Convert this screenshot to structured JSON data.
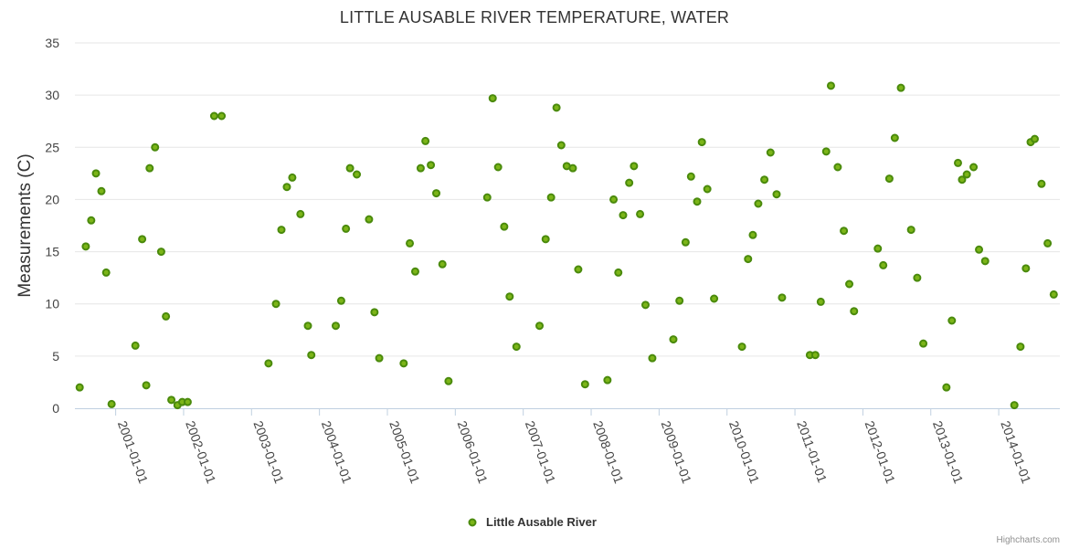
{
  "chart_data": {
    "type": "scatter",
    "title": "LITTLE AUSABLE RIVER TEMPERATURE, WATER",
    "xlabel": "",
    "ylabel": "Measurements (C)",
    "ylim": [
      0,
      35
    ],
    "yticks": [
      "0",
      "5",
      "10",
      "15",
      "20",
      "25",
      "30",
      "35"
    ],
    "xlim": [
      2000.4,
      2014.9
    ],
    "xticks": [
      {
        "label": "2001-01-01",
        "value": 2001.0
      },
      {
        "label": "2002-01-01",
        "value": 2002.0
      },
      {
        "label": "2003-01-01",
        "value": 2003.0
      },
      {
        "label": "2004-01-01",
        "value": 2004.0
      },
      {
        "label": "2005-01-01",
        "value": 2005.0
      },
      {
        "label": "2006-01-01",
        "value": 2006.0
      },
      {
        "label": "2007-01-01",
        "value": 2007.0
      },
      {
        "label": "2008-01-01",
        "value": 2008.0
      },
      {
        "label": "2009-01-01",
        "value": 2009.0
      },
      {
        "label": "2010-01-01",
        "value": 2010.0
      },
      {
        "label": "2011-01-01",
        "value": 2011.0
      },
      {
        "label": "2012-01-01",
        "value": 2012.0
      },
      {
        "label": "2013-01-01",
        "value": 2013.0
      },
      {
        "label": "2014-01-01",
        "value": 2014.0
      }
    ],
    "grid": true,
    "legend_position": "bottom-center",
    "credits": "Highcharts.com",
    "series": [
      {
        "name": "Little Ausable River",
        "color": "#6aa51e",
        "marker_fill": "#7cb518",
        "marker_stroke": "#4a8a0c",
        "points": [
          [
            2000.47,
            2.0
          ],
          [
            2000.56,
            15.5
          ],
          [
            2000.64,
            18.0
          ],
          [
            2000.71,
            22.5
          ],
          [
            2000.79,
            20.8
          ],
          [
            2000.86,
            13.0
          ],
          [
            2000.94,
            0.4
          ],
          [
            2001.29,
            6.0
          ],
          [
            2001.39,
            16.2
          ],
          [
            2001.45,
            2.2
          ],
          [
            2001.5,
            23.0
          ],
          [
            2001.58,
            25.0
          ],
          [
            2001.67,
            15.0
          ],
          [
            2001.74,
            8.8
          ],
          [
            2001.82,
            0.8
          ],
          [
            2001.91,
            0.3
          ],
          [
            2001.98,
            0.6
          ],
          [
            2002.06,
            0.6
          ],
          [
            2002.45,
            28.0
          ],
          [
            2002.56,
            28.0
          ],
          [
            2003.25,
            4.3
          ],
          [
            2003.36,
            10.0
          ],
          [
            2003.44,
            17.1
          ],
          [
            2003.52,
            21.2
          ],
          [
            2003.6,
            22.1
          ],
          [
            2003.72,
            18.6
          ],
          [
            2003.83,
            7.9
          ],
          [
            2003.88,
            5.1
          ],
          [
            2004.24,
            7.9
          ],
          [
            2004.32,
            10.3
          ],
          [
            2004.39,
            17.2
          ],
          [
            2004.45,
            23.0
          ],
          [
            2004.55,
            22.4
          ],
          [
            2004.73,
            18.1
          ],
          [
            2004.81,
            9.2
          ],
          [
            2004.88,
            4.8
          ],
          [
            2005.24,
            4.3
          ],
          [
            2005.33,
            15.8
          ],
          [
            2005.41,
            13.1
          ],
          [
            2005.49,
            23.0
          ],
          [
            2005.56,
            25.6
          ],
          [
            2005.64,
            23.3
          ],
          [
            2005.72,
            20.6
          ],
          [
            2005.81,
            13.8
          ],
          [
            2005.9,
            2.6
          ],
          [
            2006.47,
            20.2
          ],
          [
            2006.55,
            29.7
          ],
          [
            2006.63,
            23.1
          ],
          [
            2006.72,
            17.4
          ],
          [
            2006.8,
            10.7
          ],
          [
            2006.9,
            5.9
          ],
          [
            2007.24,
            7.9
          ],
          [
            2007.33,
            16.2
          ],
          [
            2007.41,
            20.2
          ],
          [
            2007.49,
            28.8
          ],
          [
            2007.56,
            25.2
          ],
          [
            2007.64,
            23.2
          ],
          [
            2007.73,
            23.0
          ],
          [
            2007.81,
            13.3
          ],
          [
            2007.91,
            2.3
          ],
          [
            2008.24,
            2.7
          ],
          [
            2008.33,
            20.0
          ],
          [
            2008.4,
            13.0
          ],
          [
            2008.47,
            18.5
          ],
          [
            2008.56,
            21.6
          ],
          [
            2008.63,
            23.2
          ],
          [
            2008.72,
            18.6
          ],
          [
            2008.8,
            9.9
          ],
          [
            2008.9,
            4.8
          ],
          [
            2009.21,
            6.6
          ],
          [
            2009.3,
            10.3
          ],
          [
            2009.39,
            15.9
          ],
          [
            2009.47,
            22.2
          ],
          [
            2009.56,
            19.8
          ],
          [
            2009.63,
            25.5
          ],
          [
            2009.71,
            21.0
          ],
          [
            2009.81,
            10.5
          ],
          [
            2010.22,
            5.9
          ],
          [
            2010.31,
            14.3
          ],
          [
            2010.38,
            16.6
          ],
          [
            2010.46,
            19.6
          ],
          [
            2010.55,
            21.9
          ],
          [
            2010.64,
            24.5
          ],
          [
            2010.73,
            20.5
          ],
          [
            2010.81,
            10.6
          ],
          [
            2011.22,
            5.1
          ],
          [
            2011.3,
            5.1
          ],
          [
            2011.38,
            10.2
          ],
          [
            2011.46,
            24.6
          ],
          [
            2011.53,
            30.9
          ],
          [
            2011.63,
            23.1
          ],
          [
            2011.72,
            17.0
          ],
          [
            2011.8,
            11.9
          ],
          [
            2011.87,
            9.3
          ],
          [
            2012.22,
            15.3
          ],
          [
            2012.3,
            13.7
          ],
          [
            2012.39,
            22.0
          ],
          [
            2012.47,
            25.9
          ],
          [
            2012.56,
            30.7
          ],
          [
            2012.71,
            17.1
          ],
          [
            2012.8,
            12.5
          ],
          [
            2012.89,
            6.2
          ],
          [
            2013.23,
            2.0
          ],
          [
            2013.31,
            8.4
          ],
          [
            2013.4,
            23.5
          ],
          [
            2013.46,
            21.9
          ],
          [
            2013.53,
            22.4
          ],
          [
            2013.63,
            23.1
          ],
          [
            2013.71,
            15.2
          ],
          [
            2013.8,
            14.1
          ],
          [
            2014.23,
            0.3
          ],
          [
            2014.32,
            5.9
          ],
          [
            2014.4,
            13.4
          ],
          [
            2014.47,
            25.5
          ],
          [
            2014.53,
            25.8
          ],
          [
            2014.63,
            21.5
          ],
          [
            2014.72,
            15.8
          ],
          [
            2014.81,
            10.9
          ]
        ]
      }
    ]
  }
}
